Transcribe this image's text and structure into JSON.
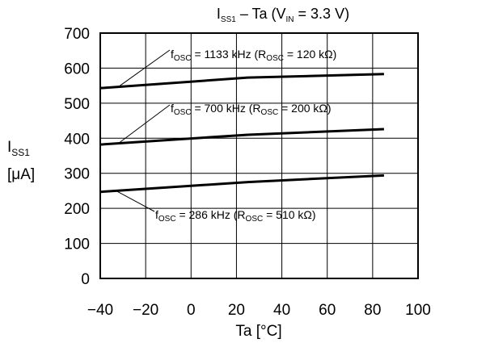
{
  "chart_data": {
    "type": "line",
    "title": {
      "main": "I",
      "main_sub": "SS1",
      "rest": " – Ta (V",
      "rest_sub": "IN",
      "tail": " = 3.3 V)"
    },
    "xlabel": "Ta [°C]",
    "ylabel": {
      "symbol": "I",
      "symbol_sub": "SS1",
      "unit": "[μA]"
    },
    "xlim": [
      -40,
      100
    ],
    "ylim": [
      0,
      700
    ],
    "xticks": [
      "−40",
      "−20",
      "0",
      "20",
      "40",
      "60",
      "80",
      "100"
    ],
    "xtick_values": [
      -40,
      -20,
      0,
      20,
      40,
      60,
      80,
      100
    ],
    "yticks": [
      "0",
      "100",
      "200",
      "300",
      "400",
      "500",
      "600",
      "700"
    ],
    "ytick_values": [
      0,
      100,
      200,
      300,
      400,
      500,
      600,
      700
    ],
    "grid": true,
    "series": [
      {
        "label": {
          "f": "f",
          "f_sub": "OSC",
          "fval": " = 1133 kHz (R",
          "r_sub": "OSC",
          "rval": " = 120 kΩ)"
        },
        "x": [
          -40,
          25,
          85
        ],
        "y": [
          543,
          573,
          583
        ]
      },
      {
        "label": {
          "f": "f",
          "f_sub": "OSC",
          "fval": " = 700 kHz (R",
          "r_sub": "OSC",
          "rval": " = 200 kΩ)"
        },
        "x": [
          -40,
          25,
          85
        ],
        "y": [
          382,
          410,
          426
        ]
      },
      {
        "label": {
          "f": "f",
          "f_sub": "OSC",
          "fval": " = 286 kHz (R",
          "r_sub": "OSC",
          "rval": " = 510 kΩ)"
        },
        "x": [
          -40,
          25,
          85
        ],
        "y": [
          247,
          275,
          294
        ]
      }
    ]
  }
}
